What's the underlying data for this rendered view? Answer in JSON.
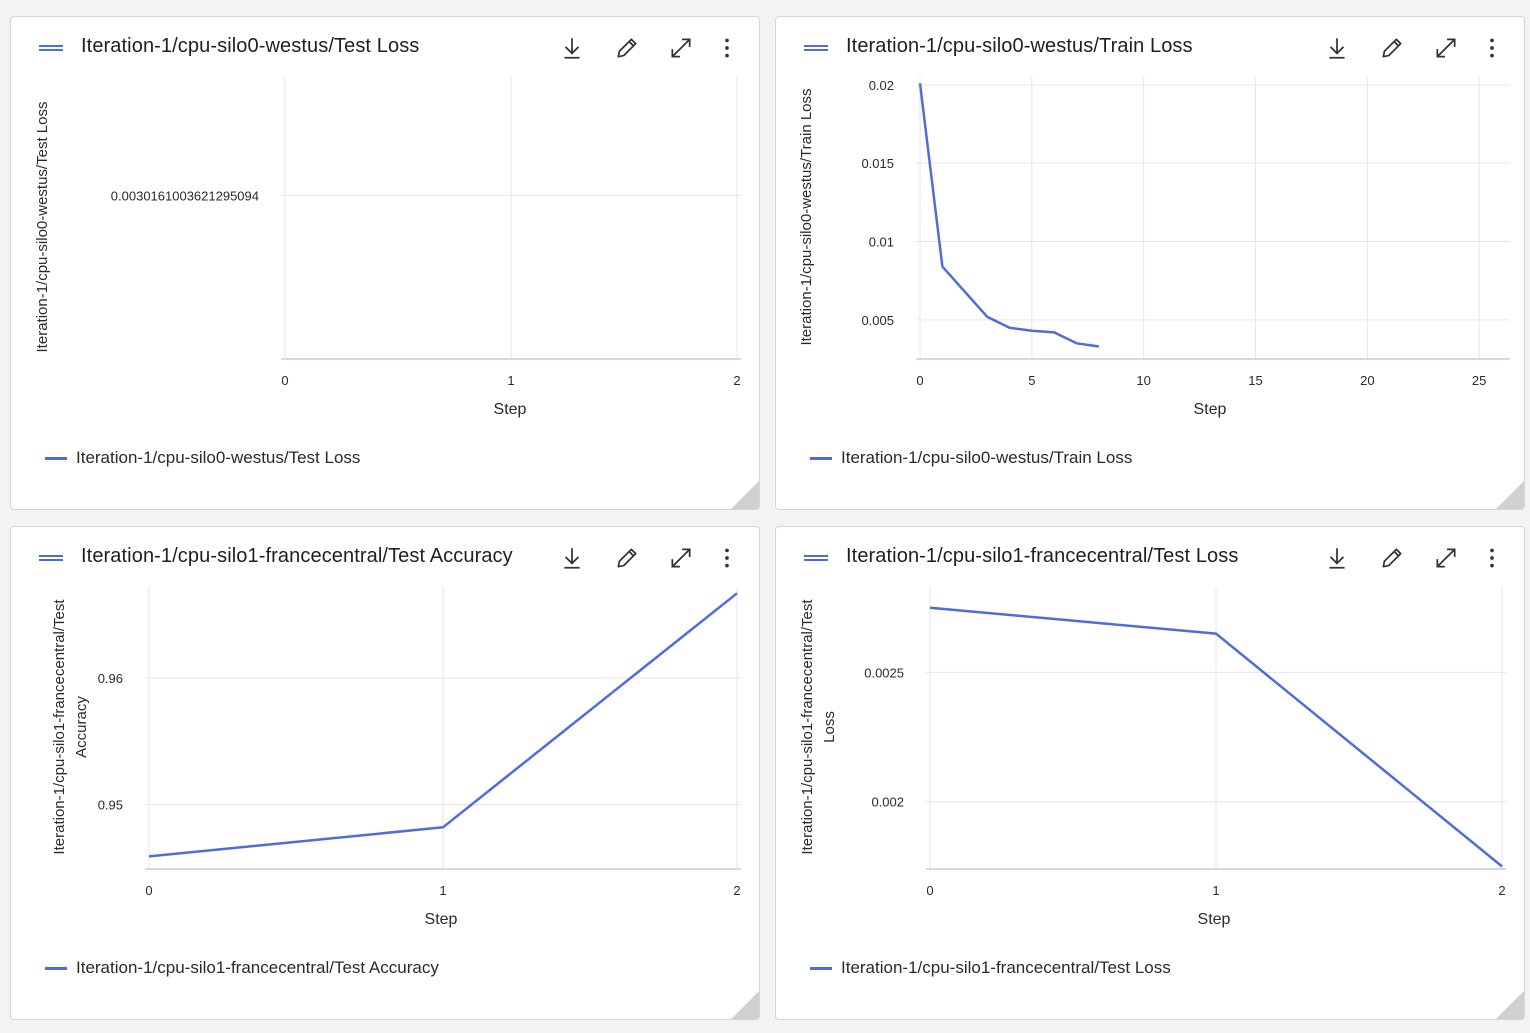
{
  "colors": {
    "series": "#4f6bdc",
    "grid": "#e4e6ea",
    "axis": "#c9ced8"
  },
  "toolbar_icons": [
    "download-icon",
    "pencil-icon",
    "expand-icon",
    "more-vertical-icon"
  ],
  "cards": [
    {
      "title": "Iteration-1/cpu-silo0-westus/Test Loss",
      "ylabel": "Iteration-1/cpu-silo0-westus/Test Loss",
      "xlabel": "Step",
      "legend": "Iteration-1/cpu-silo0-westus/Test Loss",
      "chart_data": {
        "type": "line",
        "x_ticks": [
          0,
          1,
          2
        ],
        "y_ticks": [
          {
            "value": 0.0030161003621295094,
            "label": "0.0030161003621295094"
          }
        ],
        "xlim": [
          0,
          2
        ],
        "ylim": [
          0.0029,
          0.0031
        ],
        "series": [
          {
            "name": "Iteration-1/cpu-silo0-westus/Test Loss",
            "x": [],
            "y": []
          }
        ]
      }
    },
    {
      "title": "Iteration-1/cpu-silo0-westus/Train Loss",
      "ylabel": "Iteration-1/cpu-silo0-westus/Train Loss",
      "xlabel": "Step",
      "legend": "Iteration-1/cpu-silo0-westus/Train Loss",
      "chart_data": {
        "type": "line",
        "x_ticks": [
          0,
          5,
          10,
          15,
          20,
          25
        ],
        "y_ticks": [
          {
            "value": 0.02,
            "label": "0.02"
          },
          {
            "value": 0.015,
            "label": "0.015"
          },
          {
            "value": 0.01,
            "label": "0.01"
          },
          {
            "value": 0.005,
            "label": "0.005"
          }
        ],
        "xlim": [
          0,
          26.2
        ],
        "ylim": [
          0.0025,
          0.0205
        ],
        "series": [
          {
            "name": "Iteration-1/cpu-silo0-westus/Train Loss",
            "x": [
              0,
              1,
              2,
              3,
              4,
              5,
              6,
              7,
              8
            ],
            "y": [
              0.0201,
              0.0084,
              0.0068,
              0.0052,
              0.0045,
              0.0043,
              0.0042,
              0.0035,
              0.0033
            ]
          }
        ]
      }
    },
    {
      "title": "Iteration-1/cpu-silo1-francecentral/Test Accuracy",
      "ylabel": "Iteration-1/cpu-silo1-francecentral/Test Accuracy",
      "xlabel": "Step",
      "legend": "Iteration-1/cpu-silo1-francecentral/Test Accuracy",
      "chart_data": {
        "type": "line",
        "x_ticks": [
          0,
          1,
          2
        ],
        "y_ticks": [
          {
            "value": 0.96,
            "label": "0.96"
          },
          {
            "value": 0.95,
            "label": "0.95"
          }
        ],
        "xlim": [
          0,
          2
        ],
        "ylim": [
          0.9449,
          0.9672
        ],
        "series": [
          {
            "name": "Iteration-1/cpu-silo1-francecentral/Test Accuracy",
            "x": [
              0,
              1,
              2
            ],
            "y": [
              0.9459,
              0.9482,
              0.9667
            ]
          }
        ]
      }
    },
    {
      "title": "Iteration-1/cpu-silo1-francecentral/Test Loss",
      "ylabel": "Iteration-1/cpu-silo1-francecentral/Test Loss",
      "xlabel": "Step",
      "legend": "Iteration-1/cpu-silo1-francecentral/Test Loss",
      "chart_data": {
        "type": "line",
        "x_ticks": [
          0,
          1,
          2
        ],
        "y_ticks": [
          {
            "value": 0.0025,
            "label": "0.0025"
          },
          {
            "value": 0.002,
            "label": "0.002"
          }
        ],
        "xlim": [
          0,
          2
        ],
        "ylim": [
          0.00174,
          0.00283
        ],
        "series": [
          {
            "name": "Iteration-1/cpu-silo1-francecentral/Test Loss",
            "x": [
              0,
              1,
              2
            ],
            "y": [
              0.00275,
              0.00265,
              0.00175
            ]
          }
        ]
      }
    }
  ]
}
